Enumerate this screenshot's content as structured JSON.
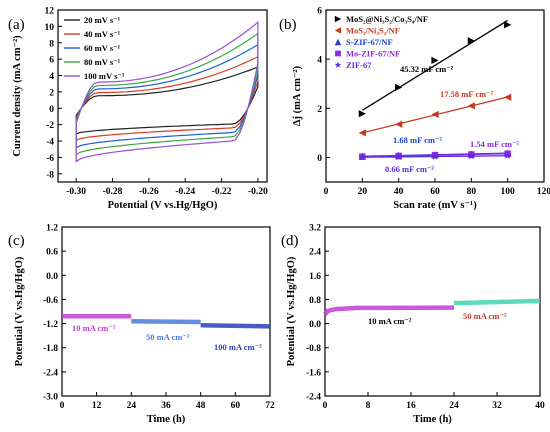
{
  "chart_data": [
    {
      "panel": "(a)",
      "type": "line",
      "xlabel": "Potential (V vs.Hg/HgO)",
      "ylabel": "Current density (mA cm⁻²)",
      "xlim": [
        -0.31,
        -0.195
      ],
      "ylim": [
        -9,
        12
      ],
      "xticks": [
        "-0.30",
        "-0.28",
        "-0.26",
        "-0.24",
        "-0.22",
        "-0.20"
      ],
      "yticks": [
        "-8",
        "-6",
        "-4",
        "-2",
        "0",
        "2",
        "4",
        "6",
        "8",
        "10",
        "12"
      ],
      "legend_position": "top-left",
      "series": [
        {
          "name": "20 mV s⁻¹",
          "color": "#222222",
          "scale": 0.48
        },
        {
          "name": "40 mV s⁻¹",
          "color": "#d93a2b",
          "scale": 0.6
        },
        {
          "name": "60 mV s⁻¹",
          "color": "#1f5fd6",
          "scale": 0.74
        },
        {
          "name": "80 mV s⁻¹",
          "color": "#3aa845",
          "scale": 0.87
        },
        {
          "name": "100 mV s⁻¹",
          "color": "#9a4fd1",
          "scale": 1.0
        }
      ],
      "cv_shape": {
        "x_start": -0.3,
        "x_end": -0.2,
        "y_top_end": 10.5,
        "y_top_start_jump": -1.8,
        "y_top_plateau": 3.2,
        "y_bottom_start": -6.5,
        "y_bottom_plateau": -4.0,
        "y_bottom_end": 5.5
      }
    },
    {
      "panel": "(b)",
      "type": "scatter",
      "xlabel": "Scan rate (mV s⁻¹)",
      "ylabel": "Δj (mA cm⁻²)",
      "xlim": [
        0,
        120
      ],
      "ylim": [
        -1,
        6
      ],
      "xticks": [
        "0",
        "20",
        "40",
        "60",
        "80",
        "100",
        "120"
      ],
      "yticks": [
        "0",
        "2",
        "4",
        "6"
      ],
      "legend_position": "top-left",
      "x": [
        20,
        40,
        60,
        80,
        100
      ],
      "series": [
        {
          "name": "MoS₂@Ni₃S₂/Co₃S₄/NF",
          "marker": "triangle-right",
          "color": "#000000",
          "values": [
            1.78,
            2.85,
            3.95,
            4.75,
            5.4
          ],
          "annotation": "45.32 mF cm⁻²"
        },
        {
          "name": "MoS₂/Ni₃S₂/NF",
          "marker": "triangle-left",
          "color": "#c23b22",
          "values": [
            1.0,
            1.35,
            1.75,
            2.1,
            2.45
          ],
          "annotation": "17.58 mF cm⁻²"
        },
        {
          "name": "S-ZIF-67/NF",
          "marker": "triangle-up",
          "color": "#1f3fd6",
          "values": [
            0.05,
            0.08,
            0.11,
            0.14,
            0.18
          ],
          "annotation": "1.68 mF cm⁻²"
        },
        {
          "name": "Mo-ZIF-67/NF",
          "marker": "square",
          "color": "#8a2be2",
          "values": [
            0.03,
            0.06,
            0.09,
            0.12,
            0.15
          ],
          "annotation": "1.54 mF cm⁻²"
        },
        {
          "name": "ZIF-67",
          "marker": "star",
          "color": "#5a2ae0",
          "values": [
            0.01,
            0.02,
            0.04,
            0.05,
            0.07
          ],
          "annotation": "0.66 mF cm⁻²"
        }
      ]
    },
    {
      "panel": "(c)",
      "type": "line",
      "xlabel": "Time (h)",
      "ylabel": "Potential (V vs.Hg/HgO)",
      "xlim": [
        0,
        72
      ],
      "ylim": [
        -3.0,
        1.2
      ],
      "xticks": [
        "0",
        "12",
        "24",
        "36",
        "48",
        "60",
        "72"
      ],
      "yticks": [
        "-3.0",
        "-2.4",
        "-1.8",
        "-1.2",
        "-0.6",
        "0.0",
        "0.6",
        "1.2"
      ],
      "series": [
        {
          "name": "10 mA cm⁻²",
          "color": "#c43bd8",
          "x": [
            0,
            24
          ],
          "values": [
            -1.02,
            -1.02
          ]
        },
        {
          "name": "50 mA cm⁻²",
          "color": "#4a7ad6",
          "x": [
            24,
            48
          ],
          "values": [
            -1.14,
            -1.16
          ]
        },
        {
          "name": "100 mA cm⁻²",
          "color": "#2a3fb8",
          "x": [
            48,
            72
          ],
          "values": [
            -1.24,
            -1.27
          ]
        }
      ]
    },
    {
      "panel": "(d)",
      "type": "line",
      "xlabel": "Time (h)",
      "ylabel": "Potential (V vs.Hg/HgO)",
      "xlim": [
        0,
        40
      ],
      "ylim": [
        -2.4,
        3.2
      ],
      "xticks": [
        "0",
        "8",
        "16",
        "24",
        "32",
        "40"
      ],
      "yticks": [
        "-2.4",
        "-1.6",
        "-0.8",
        "0.0",
        "0.8",
        "1.6",
        "2.4",
        "3.2"
      ],
      "series": [
        {
          "name": "10 mA cm⁻²",
          "color": "#c43bd8",
          "x": [
            0,
            0.5,
            2,
            6,
            24
          ],
          "values": [
            0.3,
            0.42,
            0.48,
            0.52,
            0.53
          ]
        },
        {
          "name": "50 mA cm⁻²",
          "color": "#3fd3b0",
          "x": [
            24,
            40
          ],
          "values": [
            0.68,
            0.75
          ]
        }
      ]
    }
  ]
}
